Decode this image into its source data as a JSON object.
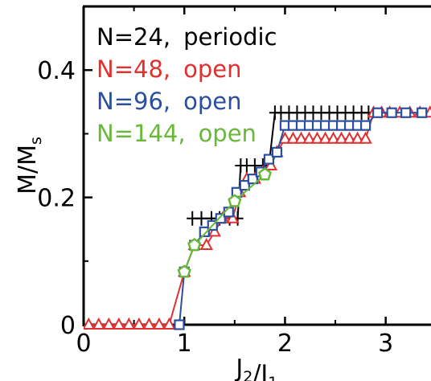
{
  "chart_data": {
    "type": "line",
    "title": "",
    "xlabel": "J_2/J_1",
    "ylabel": "M/M_s",
    "xlim": [
      0,
      3.45
    ],
    "ylim": [
      0,
      0.5
    ],
    "xticks": [
      "0",
      "1",
      "2",
      "3"
    ],
    "xtick_values": [
      0,
      1,
      2,
      3
    ],
    "yticks": [
      "0",
      "0.2",
      "0.4"
    ],
    "ytick_values": [
      0,
      0.2,
      0.4
    ],
    "grid": false,
    "legend_placement": "top-left",
    "legend": [
      {
        "label": "N=24,",
        "suffix": "periodic",
        "color": "#000000"
      },
      {
        "label": "N=48,",
        "suffix": "open",
        "color": "#e03030"
      },
      {
        "label": "N=96,",
        "suffix": "open",
        "color": "#2a4f9e"
      },
      {
        "label": "N=144,",
        "suffix": "open",
        "color": "#6ab83a"
      }
    ],
    "series": [
      {
        "marker": "plus",
        "color": "#000000",
        "x": [
          1.08,
          1.17,
          1.27,
          1.35,
          1.45,
          1.53,
          1.56,
          1.62,
          1.7,
          1.78,
          1.8,
          1.84,
          1.9,
          1.96,
          2.04,
          2.12,
          2.2,
          2.28,
          2.36,
          2.44,
          2.52,
          2.6,
          2.68,
          2.76,
          2.83
        ],
        "y": [
          0.167,
          0.167,
          0.167,
          0.167,
          0.167,
          0.167,
          0.25,
          0.25,
          0.25,
          0.25,
          0.25,
          0.25,
          0.333,
          0.333,
          0.333,
          0.333,
          0.333,
          0.333,
          0.333,
          0.333,
          0.333,
          0.333,
          0.333,
          0.333,
          0.333
        ]
      },
      {
        "marker": "triangle",
        "color": "#e03030",
        "x": [
          0.05,
          0.15,
          0.25,
          0.35,
          0.45,
          0.55,
          0.65,
          0.75,
          0.85,
          1.0,
          1.1,
          1.22,
          1.3,
          1.38,
          1.48,
          1.55,
          1.62,
          1.7,
          1.78,
          1.86,
          1.92,
          2.0,
          2.08,
          2.16,
          2.24,
          2.32,
          2.4,
          2.48,
          2.56,
          2.64,
          2.72,
          2.8,
          2.88,
          2.96,
          3.04,
          3.14,
          3.24,
          3.34,
          3.44
        ],
        "y": [
          0,
          0,
          0,
          0,
          0,
          0,
          0,
          0,
          0,
          0.083,
          0.125,
          0.125,
          0.146,
          0.167,
          0.167,
          0.208,
          0.229,
          0.229,
          0.24,
          0.25,
          0.271,
          0.292,
          0.292,
          0.292,
          0.292,
          0.292,
          0.292,
          0.292,
          0.292,
          0.292,
          0.292,
          0.292,
          0.333,
          0.333,
          0.333,
          0.333,
          0.333,
          0.333,
          0.333
        ]
      },
      {
        "marker": "square",
        "color": "#2a4f9e",
        "x": [
          0.95,
          1.0,
          1.1,
          1.2,
          1.28,
          1.36,
          1.44,
          1.52,
          1.6,
          1.68,
          1.76,
          1.84,
          1.92,
          2.0,
          2.08,
          2.16,
          2.24,
          2.32,
          2.4,
          2.48,
          2.56,
          2.64,
          2.72,
          2.8,
          2.92,
          3.06,
          3.2,
          3.36
        ],
        "y": [
          0,
          0.083,
          0.125,
          0.146,
          0.156,
          0.167,
          0.177,
          0.208,
          0.219,
          0.229,
          0.24,
          0.26,
          0.271,
          0.313,
          0.313,
          0.313,
          0.313,
          0.313,
          0.313,
          0.313,
          0.313,
          0.313,
          0.313,
          0.313,
          0.333,
          0.333,
          0.333,
          0.333
        ]
      },
      {
        "marker": "pentagon",
        "color": "#6ab83a",
        "x": [
          1.0,
          1.1,
          1.5,
          1.8
        ],
        "y": [
          0.083,
          0.125,
          0.194,
          0.236
        ]
      }
    ]
  }
}
